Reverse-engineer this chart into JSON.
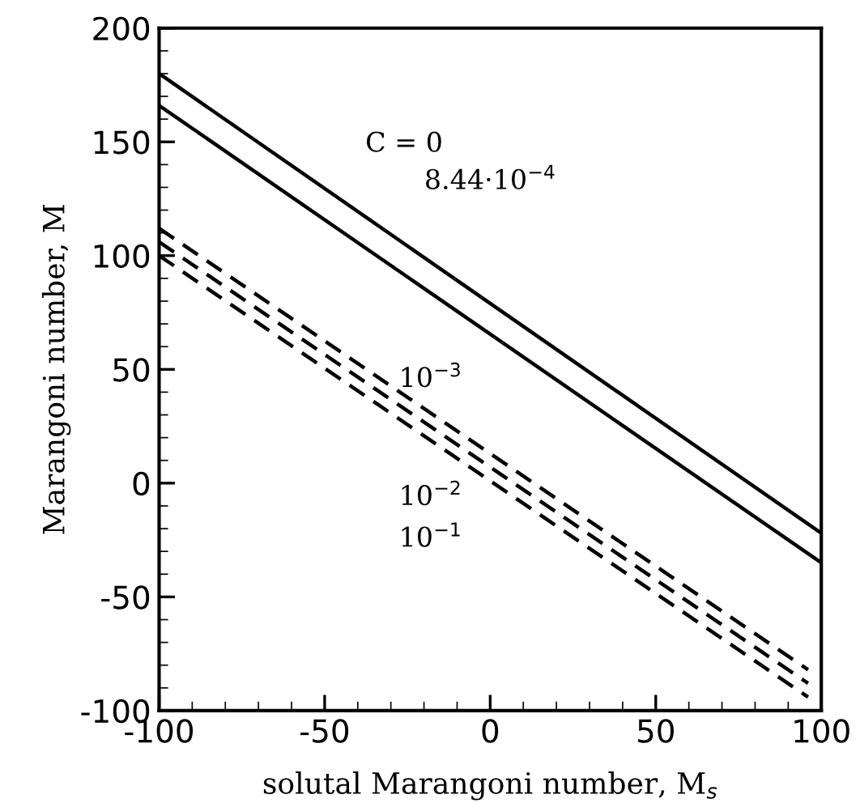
{
  "chart_data": {
    "type": "line",
    "xlabel": "solutal Marangoni number, M$_{s}$",
    "ylabel": "Marangoni number, M",
    "xlim": [
      -100,
      100
    ],
    "ylim": [
      -100,
      200
    ],
    "xticks": [
      -100,
      -50,
      0,
      50,
      100
    ],
    "yticks": [
      -100,
      -50,
      0,
      50,
      100,
      150,
      200
    ],
    "grid": false,
    "legend": false,
    "series": [
      {
        "x": [
          -100,
          100
        ],
        "values": [
          180,
          -22
        ],
        "color": "#000000",
        "line_style": "solid"
      },
      {
        "x": [
          -100,
          100
        ],
        "values": [
          166,
          -35
        ],
        "color": "#000000",
        "line_style": "solid"
      },
      {
        "x": [
          -100,
          96
        ],
        "values": [
          112,
          -82
        ],
        "color": "#000000",
        "line_style": "dashed"
      },
      {
        "x": [
          -100,
          96
        ],
        "values": [
          106,
          -88
        ],
        "color": "#000000",
        "line_style": "dashed"
      },
      {
        "x": [
          -100,
          96
        ],
        "values": [
          100,
          -94
        ],
        "color": "#000000",
        "line_style": "dashed"
      }
    ],
    "annotations": [
      "C = 0",
      "8.44·10$^{−4}$",
      "10$^{−3}$",
      "10$^{−2}$",
      "10$^{−1}$"
    ]
  }
}
